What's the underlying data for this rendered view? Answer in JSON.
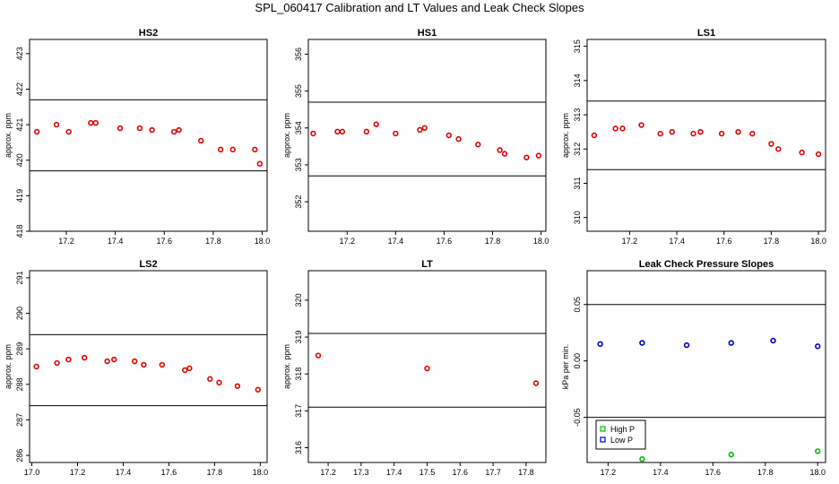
{
  "title": "SPL_060417  Calibration and LT Values and Leak Check Slopes",
  "colors": {
    "red": "#e00000",
    "green": "#00bb00",
    "blue": "#0000cc",
    "axis": "#000000"
  },
  "chart_data": [
    {
      "type": "scatter",
      "title": "HS2",
      "ylabel": "approx. ppm",
      "xlim": [
        17.05,
        18.02
      ],
      "ylim": [
        418,
        423.4
      ],
      "xticks": [
        "17.2",
        "17.4",
        "17.6",
        "17.8",
        "18.0"
      ],
      "yticks": [
        "418",
        "419",
        "420",
        "421",
        "422",
        "423"
      ],
      "hlines": [
        421.7,
        419.7
      ],
      "series": [
        {
          "color": "red",
          "marker": "circle",
          "x": [
            17.08,
            17.16,
            17.21,
            17.3,
            17.32,
            17.42,
            17.5,
            17.55,
            17.64,
            17.66,
            17.75,
            17.83,
            17.88,
            17.97,
            17.99
          ],
          "y": [
            420.8,
            421.0,
            420.8,
            421.05,
            421.05,
            420.9,
            420.9,
            420.85,
            420.8,
            420.85,
            420.55,
            420.3,
            420.3,
            420.3,
            419.9
          ]
        }
      ]
    },
    {
      "type": "scatter",
      "title": "HS1",
      "ylabel": "approx. ppm",
      "xlim": [
        17.04,
        18.02
      ],
      "ylim": [
        351.2,
        356.4
      ],
      "xticks": [
        "17.2",
        "17.4",
        "17.6",
        "17.8",
        "18.0"
      ],
      "yticks": [
        "352",
        "353",
        "354",
        "355",
        "356"
      ],
      "hlines": [
        354.7,
        352.7
      ],
      "series": [
        {
          "color": "red",
          "marker": "circle",
          "x": [
            17.06,
            17.16,
            17.18,
            17.28,
            17.32,
            17.4,
            17.5,
            17.52,
            17.62,
            17.66,
            17.74,
            17.83,
            17.85,
            17.94,
            17.99
          ],
          "y": [
            353.85,
            353.9,
            353.9,
            353.9,
            354.1,
            353.85,
            353.95,
            354.0,
            353.8,
            353.7,
            353.55,
            353.4,
            353.3,
            353.2,
            353.25
          ]
        }
      ]
    },
    {
      "type": "scatter",
      "title": "LS1",
      "ylabel": "approx. ppm",
      "xlim": [
        17.02,
        18.03
      ],
      "ylim": [
        309.6,
        315.2
      ],
      "xticks": [
        "17.2",
        "17.4",
        "17.6",
        "17.8",
        "18.0"
      ],
      "yticks": [
        "310",
        "311",
        "312",
        "313",
        "314",
        "315"
      ],
      "hlines": [
        313.4,
        311.4
      ],
      "series": [
        {
          "color": "red",
          "marker": "circle",
          "x": [
            17.05,
            17.14,
            17.17,
            17.25,
            17.33,
            17.38,
            17.47,
            17.5,
            17.59,
            17.66,
            17.72,
            17.8,
            17.83,
            17.93,
            18.0
          ],
          "y": [
            312.4,
            312.6,
            312.6,
            312.7,
            312.45,
            312.5,
            312.45,
            312.5,
            312.45,
            312.5,
            312.45,
            312.15,
            312.0,
            311.9,
            311.85
          ]
        }
      ]
    },
    {
      "type": "scatter",
      "title": "LS2",
      "ylabel": "approx. ppm",
      "xlim": [
        16.99,
        18.03
      ],
      "ylim": [
        285.8,
        291.2
      ],
      "xticks": [
        "17.0",
        "17.2",
        "17.4",
        "17.6",
        "17.8",
        "18.0"
      ],
      "yticks": [
        "286",
        "287",
        "288",
        "289",
        "290",
        "291"
      ],
      "hlines": [
        289.4,
        287.4
      ],
      "series": [
        {
          "color": "red",
          "marker": "circle",
          "x": [
            17.02,
            17.11,
            17.16,
            17.23,
            17.33,
            17.36,
            17.45,
            17.49,
            17.57,
            17.67,
            17.69,
            17.78,
            17.82,
            17.9,
            17.99
          ],
          "y": [
            288.5,
            288.6,
            288.7,
            288.75,
            288.65,
            288.7,
            288.65,
            288.55,
            288.55,
            288.4,
            288.45,
            288.15,
            288.05,
            287.95,
            287.85
          ]
        }
      ]
    },
    {
      "type": "scatter",
      "title": "LT",
      "ylabel": "approx. ppm",
      "xlim": [
        17.14,
        17.86
      ],
      "ylim": [
        315.6,
        320.8
      ],
      "xticks": [
        "17.2",
        "17.3",
        "17.4",
        "17.5",
        "17.6",
        "17.7",
        "17.8"
      ],
      "yticks": [
        "316",
        "317",
        "318",
        "319",
        "320"
      ],
      "hlines": [
        319.1,
        317.1
      ],
      "series": [
        {
          "color": "red",
          "marker": "circle",
          "x": [
            17.17,
            17.5,
            17.83
          ],
          "y": [
            318.5,
            318.15,
            317.75
          ]
        }
      ]
    },
    {
      "type": "scatter",
      "title": "Leak Check Pressure Slopes",
      "ylabel": "kPa per min.",
      "xlim": [
        17.12,
        18.03
      ],
      "ylim": [
        -0.09,
        0.08
      ],
      "xticks": [
        "17.2",
        "17.4",
        "17.6",
        "17.8",
        "18.0"
      ],
      "yticks": [
        "-0.05",
        "0.00",
        "0.05"
      ],
      "hlines": [
        0.05,
        -0.05
      ],
      "legend": {
        "position": "bottom-left",
        "entries": [
          {
            "label": "High P",
            "color": "green",
            "marker": "square"
          },
          {
            "label": "Low P",
            "color": "blue",
            "marker": "square"
          }
        ]
      },
      "series": [
        {
          "name": "High P",
          "color": "green",
          "marker": "circle",
          "x": [
            17.33,
            17.67,
            18.0
          ],
          "y": [
            -0.087,
            -0.083,
            -0.08
          ]
        },
        {
          "name": "Low P",
          "color": "blue",
          "marker": "circle",
          "x": [
            17.17,
            17.33,
            17.5,
            17.67,
            17.83,
            18.0
          ],
          "y": [
            0.015,
            0.016,
            0.014,
            0.016,
            0.018,
            0.013
          ]
        }
      ]
    }
  ]
}
